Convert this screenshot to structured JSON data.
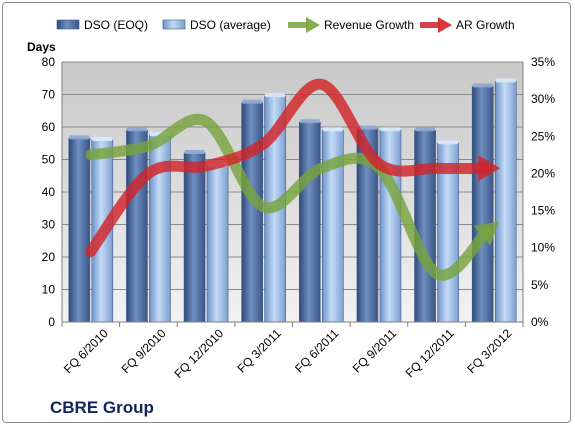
{
  "company": "CBRE Group",
  "chart_data": {
    "type": "bar",
    "ylabel": "Days",
    "categories": [
      "FQ 6/2010",
      "FQ 9/2010",
      "FQ 12/2010",
      "FQ 3/2011",
      "FQ 6/2011",
      "FQ 9/2011",
      "FQ 12/2011",
      "FQ 3/2012"
    ],
    "ylim": [
      0,
      80
    ],
    "y_ticks": [
      "0",
      "10",
      "20",
      "30",
      "40",
      "50",
      "60",
      "70",
      "80"
    ],
    "y2lim": [
      0,
      0.35
    ],
    "y2_ticks": [
      "0%",
      "5%",
      "10%",
      "15%",
      "20%",
      "25%",
      "30%",
      "35%"
    ],
    "legend_position": "top",
    "grid": true,
    "series": [
      {
        "name": "DSO (EOQ)",
        "type": "bar",
        "axis": "left",
        "color": "#4f6d9e",
        "values": [
          56.5,
          59,
          52,
          67.5,
          61.5,
          59.5,
          59,
          72.5
        ]
      },
      {
        "name": "DSO (average)",
        "type": "bar",
        "axis": "left",
        "color": "#9dbde6",
        "values": [
          56,
          57.5,
          48,
          69.5,
          59,
          59,
          55,
          74
        ]
      },
      {
        "name": "Revenue Growth",
        "type": "line",
        "axis": "right",
        "color": "#77a33d",
        "values": [
          0.225,
          0.237,
          0.27,
          0.155,
          0.207,
          0.208,
          0.065,
          0.13
        ]
      },
      {
        "name": "AR Growth",
        "type": "line",
        "axis": "right",
        "color": "#d2232a",
        "values": [
          0.095,
          0.2,
          0.21,
          0.24,
          0.32,
          0.213,
          0.207,
          0.207
        ]
      }
    ]
  }
}
